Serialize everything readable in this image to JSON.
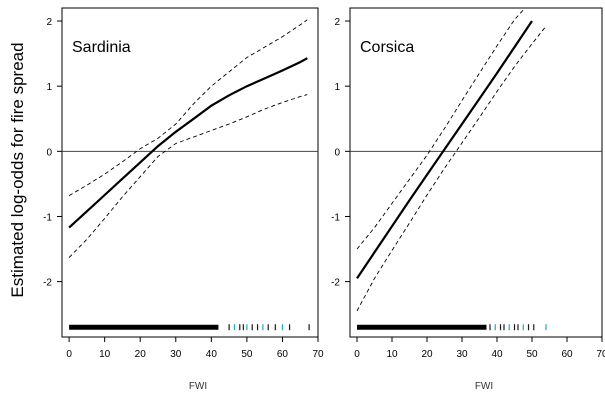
{
  "figure": {
    "ylabel": "Estimated log-odds for fire spread"
  },
  "chart_data": [
    {
      "type": "line",
      "title": "Sardinia",
      "xlabel": "FWI",
      "ylabel": "Estimated log-odds for fire spread",
      "xlim": [
        -2,
        70
      ],
      "ylim": [
        -2.85,
        2.2
      ],
      "xticks": [
        0,
        10,
        20,
        30,
        40,
        50,
        60,
        70
      ],
      "yticks": [
        -2,
        -1,
        0,
        1,
        2
      ],
      "reference_line": 0,
      "series": [
        {
          "role": "estimate",
          "style": "solid",
          "x": [
            0,
            5,
            10,
            15,
            20,
            25,
            30,
            35,
            40,
            45,
            50,
            55,
            60,
            65,
            67
          ],
          "y": [
            -1.17,
            -0.92,
            -0.67,
            -0.42,
            -0.17,
            0.08,
            0.3,
            0.5,
            0.7,
            0.86,
            1.0,
            1.12,
            1.24,
            1.37,
            1.43
          ]
        },
        {
          "role": "upper_band",
          "style": "dashed",
          "x": [
            0,
            5,
            10,
            15,
            20,
            25,
            30,
            35,
            40,
            45,
            50,
            55,
            60,
            65,
            67
          ],
          "y": [
            -0.68,
            -0.52,
            -0.35,
            -0.16,
            0.04,
            0.2,
            0.42,
            0.73,
            1.0,
            1.22,
            1.44,
            1.6,
            1.76,
            1.94,
            2.02
          ]
        },
        {
          "role": "lower_band",
          "style": "dashed",
          "x": [
            0,
            5,
            10,
            15,
            20,
            25,
            30,
            35,
            40,
            45,
            50,
            55,
            60,
            65,
            67
          ],
          "y": [
            -1.63,
            -1.35,
            -1.03,
            -0.7,
            -0.39,
            -0.08,
            0.12,
            0.22,
            0.32,
            0.42,
            0.53,
            0.65,
            0.75,
            0.84,
            0.87
          ]
        }
      ],
      "rug": {
        "dense_from": 0,
        "dense_to": 42,
        "sparse": [
          45,
          46.5,
          48,
          49,
          50,
          51.5,
          53,
          54.5,
          56,
          58,
          60,
          62,
          67.5
        ]
      }
    },
    {
      "type": "line",
      "title": "Corsica",
      "xlabel": "FWI",
      "ylabel": "",
      "xlim": [
        -2,
        70
      ],
      "ylim": [
        -2.85,
        2.2
      ],
      "xticks": [
        0,
        10,
        20,
        30,
        40,
        50,
        60,
        70
      ],
      "yticks": [
        -2,
        -1,
        0,
        1,
        2
      ],
      "reference_line": 0,
      "series": [
        {
          "role": "estimate",
          "style": "solid",
          "x": [
            0,
            5,
            10,
            15,
            20,
            25,
            30,
            35,
            40,
            45,
            50
          ],
          "y": [
            -1.95,
            -1.55,
            -1.15,
            -0.75,
            -0.36,
            0.03,
            0.42,
            0.81,
            1.2,
            1.6,
            2.0
          ]
        },
        {
          "role": "upper_band",
          "style": "dashed",
          "x": [
            0,
            5,
            10,
            15,
            20,
            25,
            30,
            35,
            40,
            45,
            48
          ],
          "y": [
            -1.5,
            -1.17,
            -0.8,
            -0.43,
            -0.06,
            0.35,
            0.78,
            1.2,
            1.62,
            2.02,
            2.2
          ]
        },
        {
          "role": "lower_band",
          "style": "dashed",
          "x": [
            0,
            5,
            10,
            15,
            20,
            25,
            30,
            35,
            40,
            45,
            50,
            54
          ],
          "y": [
            -2.45,
            -1.95,
            -1.52,
            -1.1,
            -0.67,
            -0.26,
            0.13,
            0.52,
            0.92,
            1.3,
            1.65,
            1.92
          ]
        }
      ],
      "rug": {
        "dense_from": 0,
        "dense_to": 37,
        "sparse": [
          38,
          39.5,
          41,
          42,
          43.5,
          45,
          46,
          47.5,
          49,
          50.5,
          54
        ]
      }
    }
  ]
}
